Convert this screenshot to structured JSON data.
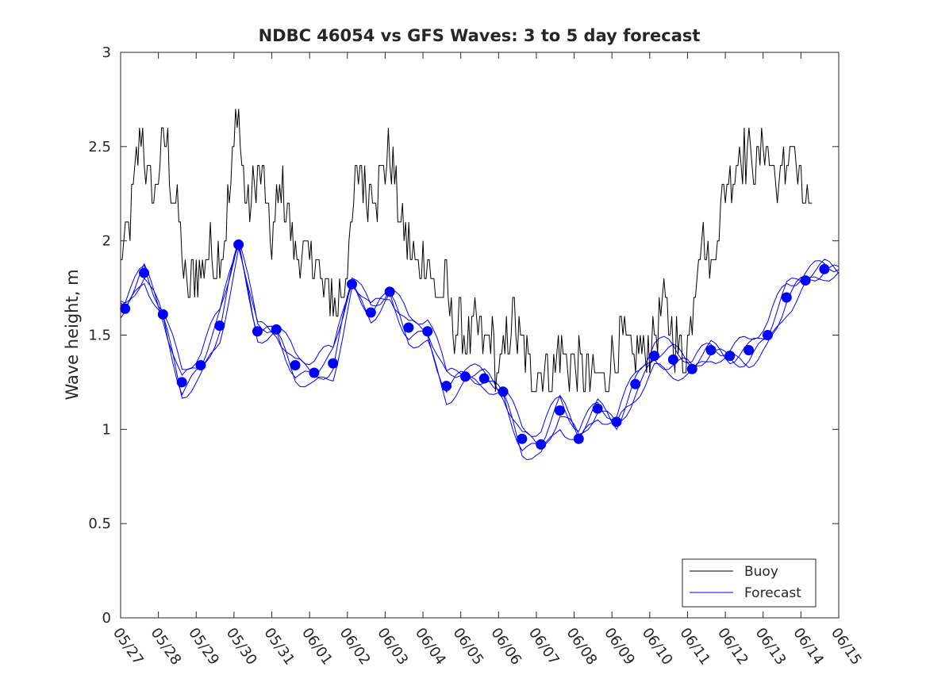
{
  "chart_data": {
    "type": "line",
    "title": "NDBC 46054 vs GFS Waves: 3 to 5 day forecast",
    "xlabel": "",
    "ylabel": "Wave height, m",
    "x_ticks": [
      "05/27",
      "05/28",
      "05/29",
      "05/30",
      "05/31",
      "06/01",
      "06/02",
      "06/03",
      "06/04",
      "06/05",
      "06/06",
      "06/07",
      "06/08",
      "06/09",
      "06/10",
      "06/11",
      "06/12",
      "06/13",
      "06/14",
      "06/15"
    ],
    "y_ticks": [
      "0",
      "0.5",
      "1",
      "1.5",
      "2",
      "2.5",
      "3"
    ],
    "xlim_days": [
      0,
      19
    ],
    "ylim": [
      0,
      3
    ],
    "grid": false,
    "legend": {
      "position": "bottom-right",
      "entries": [
        "Buoy",
        "Forecast"
      ]
    },
    "colors": {
      "buoy": "#000000",
      "forecast": "#0000ff",
      "axes": "#262626"
    },
    "buoy_anchor": {
      "x_days": [
        0,
        0.15,
        0.3,
        0.45,
        0.55,
        0.65,
        0.75,
        0.9,
        1.05,
        1.2,
        1.35,
        1.5,
        1.6,
        1.7,
        1.8,
        1.9,
        2.05,
        2.2,
        2.35,
        2.5,
        2.65,
        2.8,
        2.9,
        3.0,
        3.1,
        3.2,
        3.35,
        3.5,
        3.65,
        3.8,
        3.95,
        4.1,
        4.25,
        4.4,
        4.55,
        4.7,
        4.85,
        5.0,
        5.15,
        5.3,
        5.45,
        5.6,
        5.7,
        5.8,
        5.9,
        6.0,
        6.1,
        6.2,
        6.35,
        6.5,
        6.65,
        6.8,
        6.95,
        7.1,
        7.25,
        7.4,
        7.55,
        7.7,
        7.85,
        8.0,
        8.15,
        8.3,
        8.45,
        8.6,
        8.75,
        8.9,
        9.05,
        9.2,
        9.35,
        9.5,
        9.65,
        9.8,
        9.95,
        10.1,
        10.25,
        10.4,
        10.55,
        10.7,
        10.85,
        11.0,
        11.15,
        11.3,
        11.45,
        11.6,
        11.75,
        11.9,
        12.05,
        12.2,
        12.35,
        12.5,
        12.65,
        12.8,
        12.95,
        13.1,
        13.25,
        13.4,
        13.55,
        13.7,
        13.85,
        14.0,
        14.15,
        14.3,
        14.45,
        14.6,
        14.75,
        14.9,
        15.05,
        15.15,
        15.25,
        15.35,
        15.5,
        15.65,
        15.8,
        15.95,
        16.1,
        16.25,
        16.4,
        16.55,
        16.7,
        16.85,
        17.0,
        17.15,
        17.3,
        17.45,
        17.6,
        17.75,
        17.9,
        18.05,
        18.2,
        18.3
      ],
      "values": [
        1.9,
        2.0,
        2.2,
        2.45,
        2.65,
        2.4,
        2.3,
        2.25,
        2.4,
        2.55,
        2.3,
        2.15,
        2.0,
        1.8,
        1.7,
        1.8,
        1.85,
        1.9,
        1.95,
        1.9,
        1.95,
        2.1,
        2.3,
        2.5,
        2.75,
        2.4,
        2.2,
        2.25,
        2.4,
        2.3,
        2.0,
        2.1,
        2.35,
        2.2,
        2.0,
        1.9,
        1.95,
        1.85,
        1.95,
        1.75,
        1.7,
        1.75,
        1.6,
        1.75,
        1.7,
        1.9,
        2.0,
        2.3,
        2.45,
        2.2,
        2.3,
        2.25,
        2.4,
        2.45,
        2.3,
        2.1,
        2.0,
        1.95,
        1.8,
        1.9,
        1.95,
        1.7,
        1.7,
        1.75,
        1.6,
        1.55,
        1.5,
        1.45,
        1.55,
        1.5,
        1.45,
        1.5,
        1.3,
        1.35,
        1.5,
        1.6,
        1.45,
        1.4,
        1.3,
        1.3,
        1.35,
        1.3,
        1.3,
        1.45,
        1.4,
        1.35,
        1.35,
        1.3,
        1.3,
        1.25,
        1.3,
        1.25,
        1.35,
        1.4,
        1.5,
        1.45,
        1.3,
        1.45,
        1.4,
        1.45,
        1.5,
        1.65,
        1.6,
        1.5,
        1.45,
        1.4,
        1.5,
        1.7,
        1.9,
        2.05,
        1.95,
        1.85,
        2.1,
        2.25,
        2.35,
        2.4,
        2.5,
        2.45,
        2.45,
        2.35,
        2.55,
        2.45,
        2.35,
        2.3,
        2.4,
        2.55,
        2.35,
        2.2,
        2.15,
        2.05
      ]
    },
    "forecast_markers": {
      "x_days": [
        0.12,
        0.62,
        1.12,
        1.62,
        2.12,
        2.62,
        3.12,
        3.62,
        4.12,
        4.62,
        5.12,
        5.62,
        6.12,
        6.62,
        7.12,
        7.62,
        8.12,
        8.62,
        9.12,
        9.62,
        10.12,
        10.62,
        11.12,
        11.62,
        12.12,
        12.62,
        13.12,
        13.62,
        14.12,
        14.62,
        15.12,
        15.62,
        16.12,
        16.62,
        17.12,
        17.62,
        18.12,
        18.62
      ],
      "values": [
        1.64,
        1.83,
        1.61,
        1.25,
        1.34,
        1.55,
        1.98,
        1.52,
        1.53,
        1.34,
        1.3,
        1.35,
        1.77,
        1.62,
        1.73,
        1.54,
        1.52,
        1.23,
        1.28,
        1.27,
        1.2,
        0.95,
        0.92,
        1.1,
        0.95,
        1.11,
        1.04,
        1.24,
        1.39,
        1.37,
        1.32,
        1.42,
        1.39,
        1.42,
        1.5,
        1.7,
        1.79,
        1.85
      ]
    }
  }
}
